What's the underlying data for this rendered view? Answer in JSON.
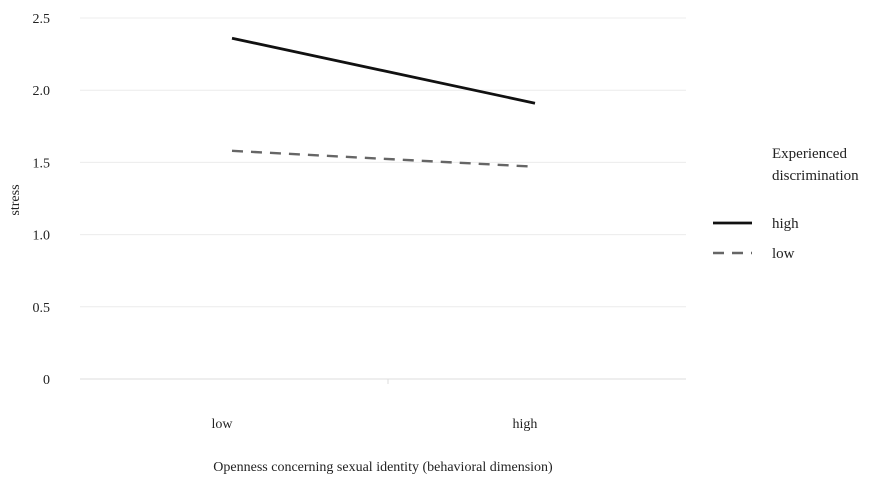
{
  "chart_data": {
    "type": "line",
    "title": "",
    "xlabel": "Openness concerning sexual identity (behavioral dimension)",
    "ylabel": "stress",
    "categories": [
      "low",
      "high"
    ],
    "ylim": [
      0,
      2.5
    ],
    "yticks": [
      0,
      0.5,
      1.0,
      1.5,
      2.0,
      2.5
    ],
    "ytick_labels": [
      "0",
      "0.5",
      "1.0",
      "1.5",
      "2.0",
      "2.5"
    ],
    "grid": true,
    "legend": {
      "title_lines": [
        "Experienced",
        "discrimination"
      ],
      "placement": "right"
    },
    "series": [
      {
        "name": "high",
        "values": [
          2.36,
          1.91
        ],
        "style": "solid",
        "color": "#111111"
      },
      {
        "name": "low",
        "values": [
          1.58,
          1.47
        ],
        "style": "dashed",
        "color": "#666666"
      }
    ]
  }
}
